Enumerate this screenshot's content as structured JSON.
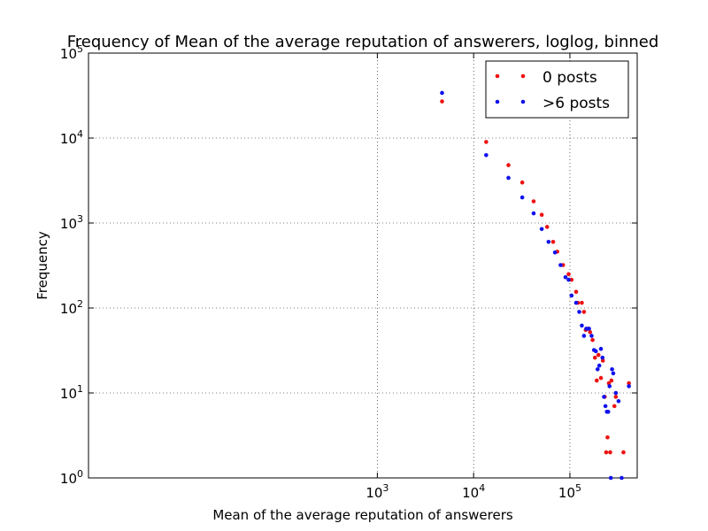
{
  "chart_data": {
    "type": "scatter",
    "title": "Frequency of Mean of the average reputation of answerers, loglog, binned",
    "xlabel": "Mean of the average reputation of answerers",
    "ylabel": "Frequency",
    "xscale": "log",
    "yscale": "log",
    "xlim": [
      1,
      500000
    ],
    "ylim": [
      1,
      100000
    ],
    "x_ticks": [
      {
        "value": 1000,
        "label": "10^3"
      },
      {
        "value": 10000,
        "label": "10^4"
      },
      {
        "value": 100000,
        "label": "10^5"
      }
    ],
    "y_ticks": [
      {
        "value": 1,
        "label": "10^0"
      },
      {
        "value": 10,
        "label": "10^1"
      },
      {
        "value": 100,
        "label": "10^2"
      },
      {
        "value": 1000,
        "label": "10^3"
      },
      {
        "value": 10000,
        "label": "10^4"
      },
      {
        "value": 100000,
        "label": "10^5"
      }
    ],
    "grid": true,
    "legend_position": "top-right",
    "series": [
      {
        "name": "0 posts",
        "color": "#ee1111",
        "points": [
          [
            4700,
            27000
          ],
          [
            13500,
            9000
          ],
          [
            23000,
            4800
          ],
          [
            32000,
            3000
          ],
          [
            42000,
            1800
          ],
          [
            51000,
            1250
          ],
          [
            58000,
            900
          ],
          [
            67000,
            600
          ],
          [
            74000,
            460
          ],
          [
            85000,
            320
          ],
          [
            97000,
            250
          ],
          [
            104000,
            215
          ],
          [
            116000,
            155
          ],
          [
            121000,
            115
          ],
          [
            133000,
            115
          ],
          [
            140000,
            90
          ],
          [
            146000,
            55
          ],
          [
            155000,
            57
          ],
          [
            162000,
            52
          ],
          [
            172000,
            42
          ],
          [
            182000,
            26
          ],
          [
            190000,
            14
          ],
          [
            198000,
            28
          ],
          [
            210000,
            15
          ],
          [
            220000,
            24
          ],
          [
            230000,
            9
          ],
          [
            238000,
            2
          ],
          [
            246000,
            3
          ],
          [
            254000,
            13
          ],
          [
            262000,
            2
          ],
          [
            270000,
            14
          ],
          [
            290000,
            7
          ],
          [
            300000,
            9
          ],
          [
            360000,
            2
          ],
          [
            410000,
            13
          ]
        ]
      },
      {
        "name": ">6 posts",
        "color": "#1111ee",
        "points": [
          [
            4700,
            34000
          ],
          [
            13500,
            6300
          ],
          [
            23000,
            3400
          ],
          [
            32000,
            2000
          ],
          [
            42000,
            1300
          ],
          [
            51000,
            850
          ],
          [
            60000,
            600
          ],
          [
            70000,
            450
          ],
          [
            80000,
            320
          ],
          [
            90000,
            230
          ],
          [
            97000,
            215
          ],
          [
            104000,
            140
          ],
          [
            116000,
            115
          ],
          [
            125000,
            90
          ],
          [
            133000,
            62
          ],
          [
            140000,
            47
          ],
          [
            148000,
            57
          ],
          [
            158000,
            57
          ],
          [
            168000,
            47
          ],
          [
            178000,
            32
          ],
          [
            186000,
            31
          ],
          [
            194000,
            19
          ],
          [
            202000,
            21
          ],
          [
            210000,
            33
          ],
          [
            218000,
            26
          ],
          [
            226000,
            9
          ],
          [
            234000,
            7
          ],
          [
            242000,
            6
          ],
          [
            250000,
            6
          ],
          [
            258000,
            12
          ],
          [
            266000,
            1
          ],
          [
            274000,
            19
          ],
          [
            282000,
            17
          ],
          [
            300000,
            10
          ],
          [
            320000,
            8
          ],
          [
            345000,
            1
          ],
          [
            410000,
            12
          ]
        ]
      }
    ]
  }
}
